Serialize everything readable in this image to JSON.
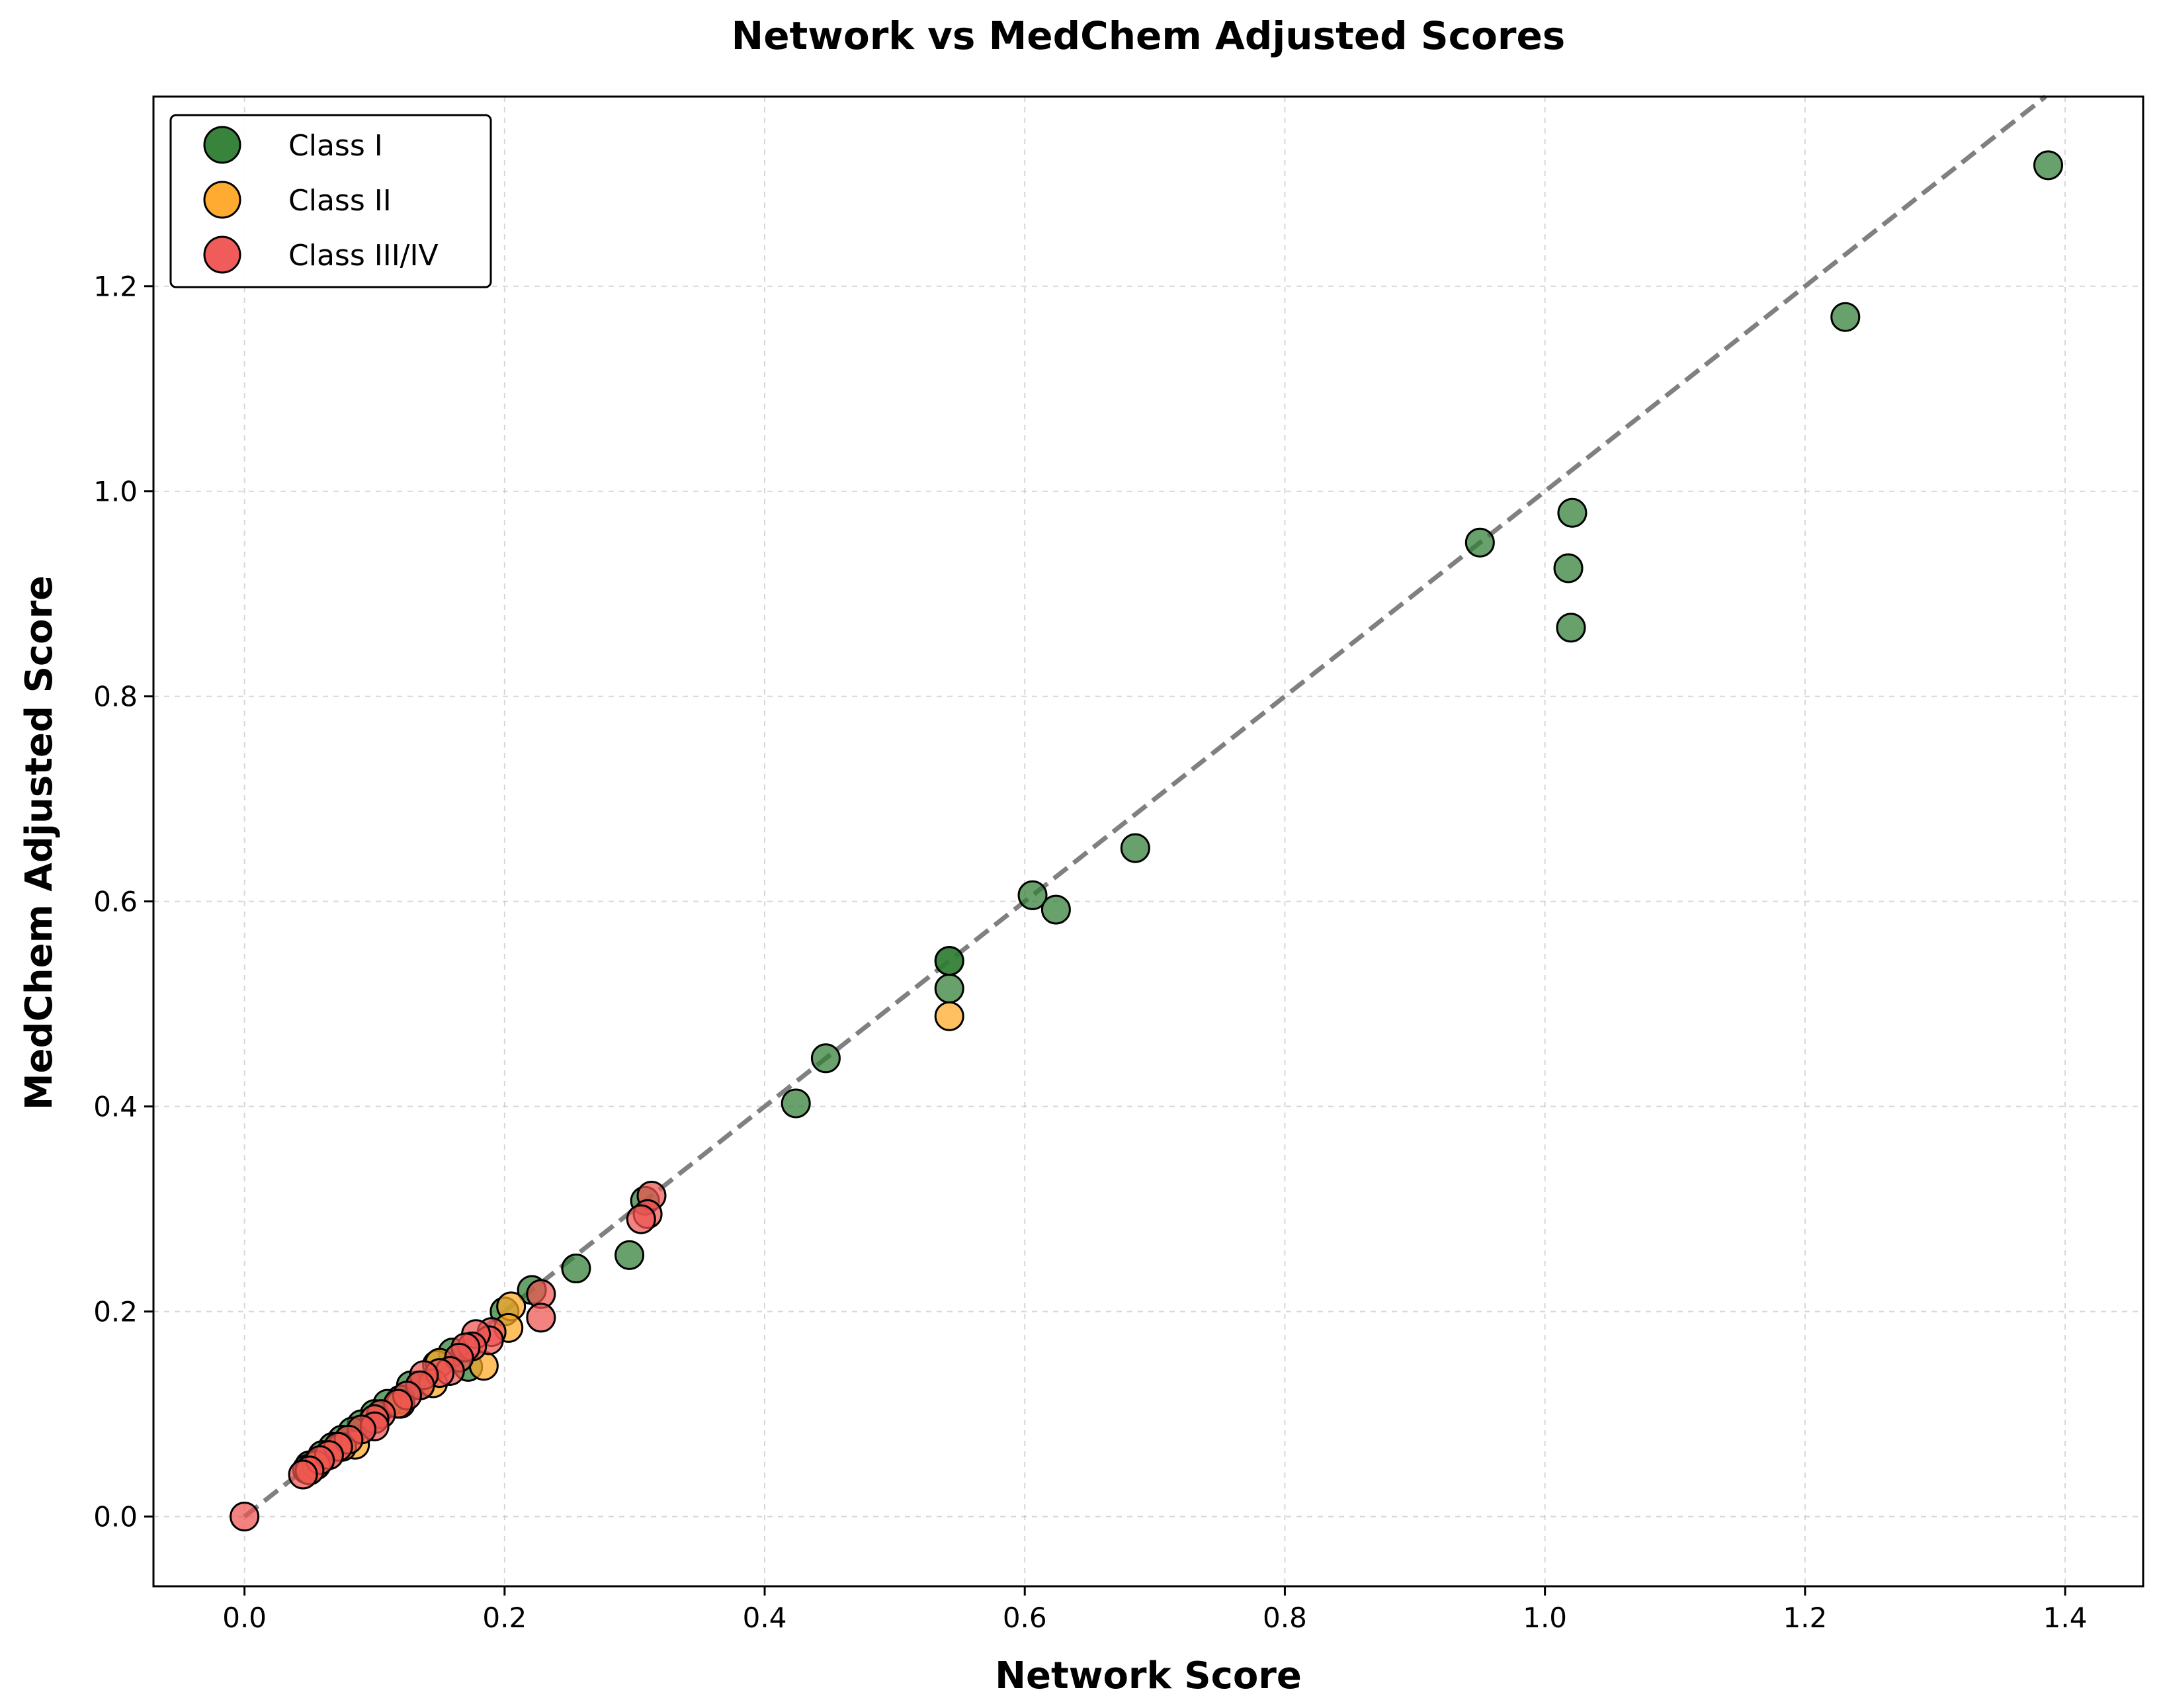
{
  "chart_data": {
    "type": "scatter",
    "title": "Network vs MedChem Adjusted Scores",
    "xlabel": "Network Score",
    "ylabel": "MedChem Adjusted Score",
    "xlim": [
      -0.07,
      1.46
    ],
    "ylim": [
      -0.068,
      1.385
    ],
    "xticks": [
      "0.0",
      "0.2",
      "0.4",
      "0.6",
      "0.8",
      "1.0",
      "1.2",
      "1.4"
    ],
    "yticks": [
      "0.0",
      "0.2",
      "0.4",
      "0.6",
      "0.8",
      "1.0",
      "1.2"
    ],
    "grid": true,
    "legend_position": "top-left",
    "reference_line": {
      "style": "dashed",
      "color": "#808080",
      "from": [
        0,
        0
      ],
      "to": [
        1.46,
        1.46
      ]
    },
    "series": [
      {
        "name": "Class I",
        "color": "#2e7d32",
        "points": [
          [
            1.387,
            1.318
          ],
          [
            1.231,
            1.17
          ],
          [
            1.021,
            0.979
          ],
          [
            1.018,
            0.925
          ],
          [
            1.02,
            0.867
          ],
          [
            0.95,
            0.95
          ],
          [
            0.685,
            0.652
          ],
          [
            0.606,
            0.606
          ],
          [
            0.624,
            0.592
          ],
          [
            0.542,
            0.542
          ],
          [
            0.542,
            0.542
          ],
          [
            0.542,
            0.515
          ],
          [
            0.447,
            0.447
          ],
          [
            0.424,
            0.403
          ],
          [
            0.308,
            0.308
          ],
          [
            0.296,
            0.255
          ],
          [
            0.255,
            0.242
          ],
          [
            0.221,
            0.221
          ],
          [
            0.2,
            0.2
          ],
          [
            0.172,
            0.146
          ],
          [
            0.16,
            0.16
          ],
          [
            0.148,
            0.148
          ],
          [
            0.135,
            0.128
          ],
          [
            0.128,
            0.128
          ],
          [
            0.12,
            0.114
          ],
          [
            0.11,
            0.11
          ],
          [
            0.1,
            0.1
          ],
          [
            0.09,
            0.09
          ],
          [
            0.083,
            0.083
          ],
          [
            0.075,
            0.075
          ],
          [
            0.068,
            0.068
          ],
          [
            0.06,
            0.06
          ],
          [
            0.055,
            0.052
          ],
          [
            0.05,
            0.05
          ],
          [
            0.048,
            0.046
          ]
        ]
      },
      {
        "name": "Class II",
        "color": "#ffa726",
        "points": [
          [
            0.542,
            0.488
          ],
          [
            0.205,
            0.205
          ],
          [
            0.203,
            0.184
          ],
          [
            0.184,
            0.147
          ],
          [
            0.15,
            0.15
          ],
          [
            0.145,
            0.13
          ],
          [
            0.12,
            0.11
          ],
          [
            0.1,
            0.095
          ],
          [
            0.085,
            0.07
          ],
          [
            0.075,
            0.068
          ],
          [
            0.065,
            0.06
          ],
          [
            0.055,
            0.05
          ],
          [
            0.05,
            0.045
          ]
        ]
      },
      {
        "name": "Class III/IV",
        "color": "#ef5350",
        "points": [
          [
            0.313,
            0.313
          ],
          [
            0.31,
            0.295
          ],
          [
            0.305,
            0.29
          ],
          [
            0.228,
            0.217
          ],
          [
            0.228,
            0.194
          ],
          [
            0.19,
            0.18
          ],
          [
            0.188,
            0.172
          ],
          [
            0.178,
            0.178
          ],
          [
            0.175,
            0.166
          ],
          [
            0.17,
            0.165
          ],
          [
            0.165,
            0.155
          ],
          [
            0.158,
            0.142
          ],
          [
            0.15,
            0.14
          ],
          [
            0.138,
            0.138
          ],
          [
            0.135,
            0.128
          ],
          [
            0.125,
            0.118
          ],
          [
            0.118,
            0.11
          ],
          [
            0.105,
            0.1
          ],
          [
            0.1,
            0.095
          ],
          [
            0.1,
            0.088
          ],
          [
            0.09,
            0.085
          ],
          [
            0.08,
            0.075
          ],
          [
            0.072,
            0.068
          ],
          [
            0.065,
            0.06
          ],
          [
            0.058,
            0.055
          ],
          [
            0.05,
            0.045
          ],
          [
            0.045,
            0.041
          ],
          [
            0.0,
            0.0
          ]
        ]
      }
    ]
  }
}
